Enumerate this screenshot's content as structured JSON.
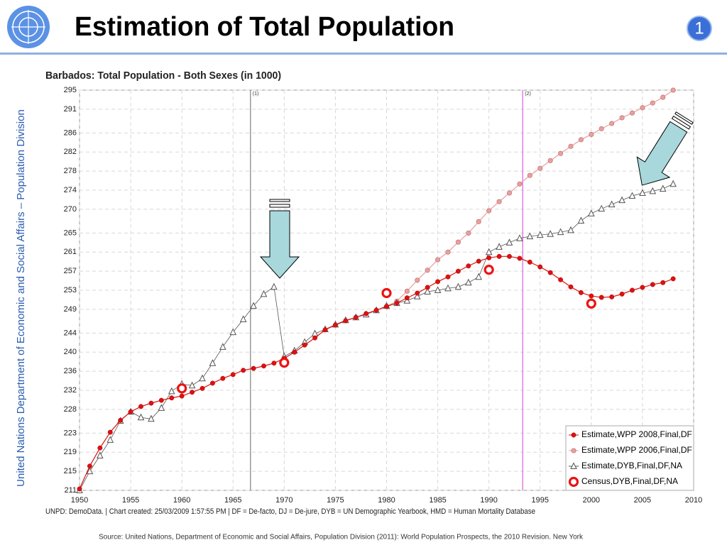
{
  "header": {
    "title": "Estimation of Total Population",
    "badge": "1"
  },
  "side_text": "United Nations Department of Economic and Social Affairs – Population Division",
  "footer": "Source: United Nations, Department of Economic and Social Affairs, Population Division (2011): World Population Prospects, the 2010 Revision. New York",
  "chart_data": {
    "type": "line",
    "title": "Barbados: Total Population - Both Sexes (in 1000)",
    "note": "UNPD: DemoData. | Chart created: 25/03/2009 1:57:55 PM | DF = De-facto, DJ = De-jure, DYB = UN Demographic Yearbook, HMD = Human Mortality Database",
    "xlim": [
      1950,
      2010
    ],
    "xticks": [
      1950,
      1955,
      1960,
      1965,
      1970,
      1975,
      1980,
      1985,
      1990,
      1995,
      2000,
      2005,
      2010
    ],
    "ylim": [
      211,
      295
    ],
    "yticks": [
      211,
      215,
      219,
      223,
      228,
      232,
      236,
      240,
      244,
      249,
      253,
      257,
      261,
      265,
      270,
      274,
      278,
      282,
      286,
      291,
      295
    ],
    "grid": true,
    "legend": "lower right",
    "annotations": [
      {
        "x": 1966.7,
        "label": "(1)",
        "color": "#999999"
      },
      {
        "x": 1993.3,
        "label": "(2)",
        "color": "#e080e0"
      }
    ],
    "series": [
      {
        "name": "Estimate,WPP 2006,Final,DF",
        "color": "#e8a0a0",
        "marker": "circle-light",
        "line": true,
        "x": [
          1980,
          1981,
          1982,
          1983,
          1984,
          1985,
          1986,
          1987,
          1988,
          1989,
          1990,
          1991,
          1992,
          1993,
          1994,
          1995,
          1996,
          1997,
          1998,
          1999,
          2000,
          2001,
          2002,
          2003,
          2004,
          2005,
          2006,
          2007,
          2008
        ],
        "values": [
          249.6,
          250.7,
          252.8,
          255.1,
          257.2,
          259.4,
          261.0,
          263.1,
          265.0,
          267.4,
          269.7,
          271.6,
          273.4,
          275.3,
          277.1,
          278.6,
          280.2,
          281.7,
          283.2,
          284.6,
          285.7,
          286.9,
          288.0,
          289.2,
          290.2,
          291.3,
          292.3,
          293.5,
          295.0
        ]
      },
      {
        "name": "Estimate,DYB,Final,DF,NA",
        "color": "#555555",
        "marker": "triangle",
        "line": true,
        "x": [
          1950,
          1951,
          1952,
          1953,
          1954,
          1955,
          1956,
          1957,
          1958,
          1959,
          1960,
          1961,
          1962,
          1963,
          1964,
          1965,
          1966,
          1967,
          1968,
          1969,
          1970,
          1971,
          1972,
          1973,
          1974,
          1975,
          1976,
          1977,
          1978,
          1979,
          1980,
          1981,
          1982,
          1983,
          1984,
          1985,
          1986,
          1987,
          1988,
          1989,
          1990,
          1991,
          1992,
          1993,
          1994,
          1995,
          1996,
          1997,
          1998,
          1999,
          2000,
          2001,
          2002,
          2003,
          2004,
          2005,
          2006,
          2007,
          2008
        ],
        "values": [
          211.0,
          215.0,
          218.3,
          221.6,
          225.6,
          227.5,
          226.3,
          226.0,
          228.3,
          231.8,
          233.3,
          233.0,
          234.5,
          237.7,
          241.1,
          244.2,
          246.9,
          249.7,
          252.2,
          253.7,
          239.1,
          240.3,
          242.1,
          243.9,
          244.8,
          245.8,
          246.7,
          247.3,
          247.9,
          248.8,
          249.7,
          250.3,
          250.8,
          251.7,
          252.7,
          253.0,
          253.4,
          253.7,
          254.6,
          255.8,
          261.0,
          262.1,
          263.0,
          263.9,
          264.3,
          264.6,
          264.8,
          265.2,
          265.6,
          267.6,
          269.1,
          270.1,
          271.0,
          271.9,
          272.8,
          273.4,
          273.8,
          274.3,
          275.3
        ]
      },
      {
        "name": "Estimate,WPP 2008,Final,DF",
        "color": "#dd1111",
        "marker": "circle",
        "line": true,
        "x": [
          1950,
          1951,
          1952,
          1953,
          1954,
          1955,
          1956,
          1957,
          1958,
          1959,
          1960,
          1961,
          1962,
          1963,
          1964,
          1965,
          1966,
          1967,
          1968,
          1969,
          1970,
          1971,
          1972,
          1973,
          1974,
          1975,
          1976,
          1977,
          1978,
          1979,
          1980,
          1981,
          1982,
          1983,
          1984,
          1985,
          1986,
          1987,
          1988,
          1989,
          1990,
          1991,
          1992,
          1993,
          1994,
          1995,
          1996,
          1997,
          1998,
          1999,
          2000,
          2001,
          2002,
          2003,
          2004,
          2005,
          2006,
          2007,
          2008
        ],
        "values": [
          211.3,
          216.1,
          219.9,
          223.2,
          225.7,
          227.5,
          228.6,
          229.3,
          229.9,
          230.4,
          230.8,
          231.6,
          232.4,
          233.5,
          234.5,
          235.3,
          236.2,
          236.6,
          237.1,
          237.7,
          238.7,
          240.0,
          241.5,
          243.0,
          244.7,
          245.7,
          246.6,
          247.3,
          248.1,
          248.8,
          249.6,
          250.3,
          251.4,
          252.4,
          253.6,
          254.8,
          255.8,
          257.0,
          258.1,
          259.1,
          259.8,
          260.1,
          260.1,
          259.7,
          258.9,
          257.9,
          256.7,
          255.2,
          253.7,
          252.5,
          251.8,
          251.5,
          251.6,
          252.2,
          253.0,
          253.6,
          254.2,
          254.6,
          255.4
        ]
      },
      {
        "name": "Census,DYB,Final,DF,NA",
        "color": "#ee1111",
        "marker": "ring",
        "line": false,
        "x": [
          1960,
          1970,
          1980,
          1990,
          2000
        ],
        "values": [
          232.4,
          237.8,
          252.4,
          257.3,
          250.2
        ]
      }
    ],
    "legend_order": [
      2,
      0,
      1,
      3
    ]
  }
}
